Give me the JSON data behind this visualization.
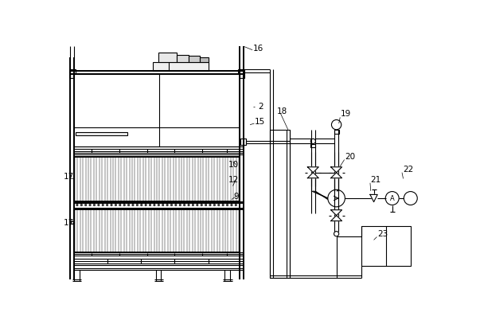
{
  "bg_color": "#ffffff",
  "line_color": "#000000",
  "lw": 0.8,
  "lw_thick": 1.4,
  "lw_thin": 0.5
}
